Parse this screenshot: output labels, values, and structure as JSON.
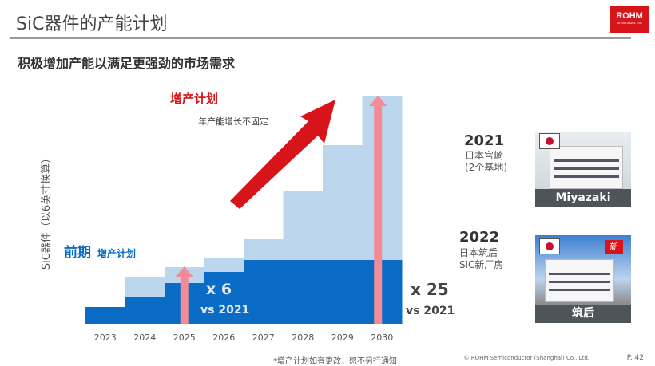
{
  "header": {
    "title": "SiC器件的产能计划",
    "logo_text": "ROHM",
    "logo_sub": "SEMICONDUCTOR"
  },
  "subtitle": "积极增加产能以满足更强劲的市场需求",
  "chart_data": {
    "type": "bar",
    "ylabel": "SiC器件（以6英寸换算）",
    "categories": [
      "2023",
      "2024",
      "2025",
      "2026",
      "2027",
      "2028",
      "2029",
      "2030"
    ],
    "series": [
      {
        "name": "前期增产计划",
        "values": [
          21,
          33,
          51,
          65,
          80,
          80,
          80,
          80
        ],
        "color": "#0a6cc4"
      },
      {
        "name": "增产计划",
        "values": [
          21,
          58,
          71,
          83,
          106,
          166,
          224,
          285
        ],
        "color": "#bcd6ee"
      }
    ],
    "ylim": [
      0,
      300
    ],
    "annotations": {
      "plan_label": "增产计划",
      "plan_note": "年产能增长不固定",
      "early_label_big": "前期",
      "early_label_small": "增产计划",
      "x6": "x 6",
      "x6_vs": "vs 2021",
      "x25": "x 25",
      "x25_vs": "vs 2021"
    },
    "colors": {
      "arrow": "#d7141a",
      "pink_arrow": "#f28b95"
    }
  },
  "sites": [
    {
      "year": "2021",
      "line1": "日本宫崎",
      "line2": "(2个基地)",
      "photo_label": "Miyazaki"
    },
    {
      "year": "2022",
      "line1": "日本筑后",
      "line2": "SiC新厂房",
      "photo_label": "筑后",
      "badge": "新"
    }
  ],
  "footer": {
    "note": "*增产计划如有更改，恕不另行通知",
    "copyright": "© ROHM Semiconductor (Shanghai) Co., Ltd.",
    "page": "P. 42"
  }
}
